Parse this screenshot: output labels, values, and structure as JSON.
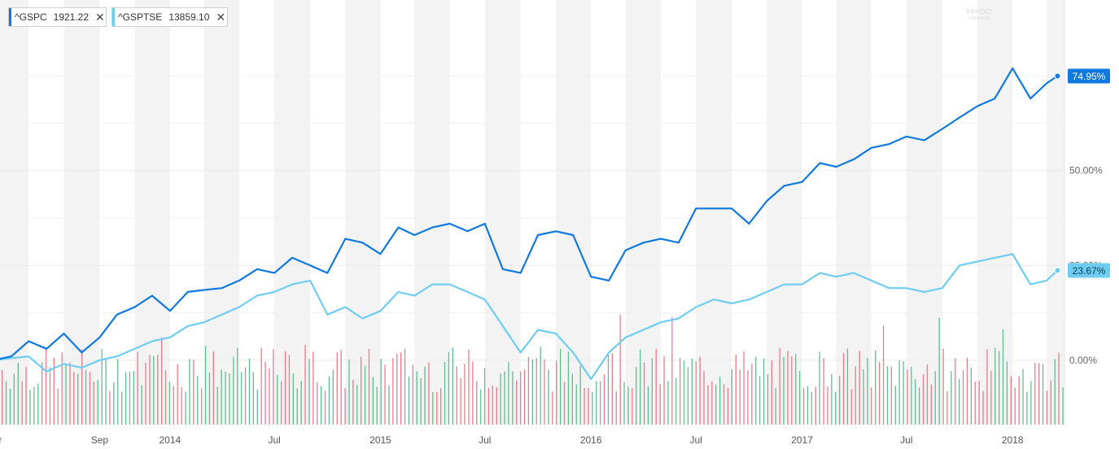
{
  "legend": [
    {
      "symbol": "^GSPC",
      "value": "1921.22",
      "color": "#1079e0",
      "close": "✕"
    },
    {
      "symbol": "^GSPTSE",
      "value": "13859.10",
      "color": "#6fcdf3",
      "close": "✕"
    }
  ],
  "watermark": {
    "brand": "YAHOO!",
    "sub": "FINANCE"
  },
  "chart_data": {
    "type": "line",
    "title": "",
    "xlabel": "",
    "ylabel": "",
    "y_unit": "%",
    "ylim": [
      -17,
      95
    ],
    "x_range": [
      "2013-03-01",
      "2018-04-01"
    ],
    "x_ticks": [
      {
        "date": "2013-03-01",
        "label": "Mar"
      },
      {
        "date": "2013-09-01",
        "label": "Sep"
      },
      {
        "date": "2014-01-01",
        "label": "2014"
      },
      {
        "date": "2014-07-01",
        "label": "Jul"
      },
      {
        "date": "2015-01-01",
        "label": "2015"
      },
      {
        "date": "2015-07-01",
        "label": "Jul"
      },
      {
        "date": "2016-01-01",
        "label": "2016"
      },
      {
        "date": "2016-07-01",
        "label": "Jul"
      },
      {
        "date": "2017-01-01",
        "label": "2017"
      },
      {
        "date": "2017-07-01",
        "label": "Jul"
      },
      {
        "date": "2018-01-01",
        "label": "2018"
      }
    ],
    "y_ticks": [
      {
        "value": 0,
        "label": "0.00%"
      },
      {
        "value": 25,
        "label": "25.00%"
      },
      {
        "value": 50,
        "label": "50.00%"
      }
    ],
    "grid": true,
    "legend_position": "top-left",
    "series": [
      {
        "name": "^GSPC",
        "color": "#1079e0",
        "end_label": "74.95%",
        "end_value": 74.95,
        "points": [
          [
            "2013-03-01",
            0
          ],
          [
            "2013-04-01",
            1
          ],
          [
            "2013-05-01",
            5
          ],
          [
            "2013-06-01",
            3
          ],
          [
            "2013-07-01",
            7
          ],
          [
            "2013-08-01",
            2
          ],
          [
            "2013-09-01",
            6
          ],
          [
            "2013-10-01",
            12
          ],
          [
            "2013-11-01",
            14
          ],
          [
            "2013-12-01",
            17
          ],
          [
            "2014-01-01",
            13
          ],
          [
            "2014-02-01",
            18
          ],
          [
            "2014-03-01",
            18.5
          ],
          [
            "2014-04-01",
            19
          ],
          [
            "2014-05-01",
            21
          ],
          [
            "2014-06-01",
            24
          ],
          [
            "2014-07-01",
            23
          ],
          [
            "2014-08-01",
            27
          ],
          [
            "2014-09-01",
            25
          ],
          [
            "2014-10-01",
            23
          ],
          [
            "2014-11-01",
            32
          ],
          [
            "2014-12-01",
            31
          ],
          [
            "2015-01-01",
            28
          ],
          [
            "2015-02-01",
            35
          ],
          [
            "2015-03-01",
            33
          ],
          [
            "2015-04-01",
            35
          ],
          [
            "2015-05-01",
            36
          ],
          [
            "2015-06-01",
            34
          ],
          [
            "2015-07-01",
            36
          ],
          [
            "2015-08-01",
            24
          ],
          [
            "2015-09-01",
            23
          ],
          [
            "2015-10-01",
            33
          ],
          [
            "2015-11-01",
            34
          ],
          [
            "2015-12-01",
            33
          ],
          [
            "2016-01-01",
            22
          ],
          [
            "2016-02-01",
            21
          ],
          [
            "2016-03-01",
            29
          ],
          [
            "2016-04-01",
            31
          ],
          [
            "2016-05-01",
            32
          ],
          [
            "2016-06-01",
            31
          ],
          [
            "2016-07-01",
            40
          ],
          [
            "2016-08-01",
            40
          ],
          [
            "2016-09-01",
            40
          ],
          [
            "2016-10-01",
            36
          ],
          [
            "2016-11-01",
            42
          ],
          [
            "2016-12-01",
            46
          ],
          [
            "2017-01-01",
            47
          ],
          [
            "2017-02-01",
            52
          ],
          [
            "2017-03-01",
            51
          ],
          [
            "2017-04-01",
            53
          ],
          [
            "2017-05-01",
            56
          ],
          [
            "2017-06-01",
            57
          ],
          [
            "2017-07-01",
            59
          ],
          [
            "2017-08-01",
            58
          ],
          [
            "2017-09-01",
            61
          ],
          [
            "2017-10-01",
            64
          ],
          [
            "2017-11-01",
            67
          ],
          [
            "2017-12-01",
            69
          ],
          [
            "2018-01-01",
            77
          ],
          [
            "2018-02-01",
            69
          ],
          [
            "2018-03-01",
            73
          ],
          [
            "2018-03-20",
            74.95
          ]
        ]
      },
      {
        "name": "^GSPTSE",
        "color": "#6fcdf3",
        "end_label": "23.67%",
        "end_value": 23.67,
        "points": [
          [
            "2013-03-01",
            0
          ],
          [
            "2013-04-01",
            0.5
          ],
          [
            "2013-05-01",
            1
          ],
          [
            "2013-06-01",
            -3
          ],
          [
            "2013-07-01",
            -1
          ],
          [
            "2013-08-01",
            -2
          ],
          [
            "2013-09-01",
            0
          ],
          [
            "2013-10-01",
            1
          ],
          [
            "2013-11-01",
            3
          ],
          [
            "2013-12-01",
            5
          ],
          [
            "2014-01-01",
            6
          ],
          [
            "2014-02-01",
            9
          ],
          [
            "2014-03-01",
            10
          ],
          [
            "2014-04-01",
            12
          ],
          [
            "2014-05-01",
            14
          ],
          [
            "2014-06-01",
            17
          ],
          [
            "2014-07-01",
            18
          ],
          [
            "2014-08-01",
            20
          ],
          [
            "2014-09-01",
            21
          ],
          [
            "2014-10-01",
            12
          ],
          [
            "2014-11-01",
            14
          ],
          [
            "2014-12-01",
            11
          ],
          [
            "2015-01-01",
            13
          ],
          [
            "2015-02-01",
            18
          ],
          [
            "2015-03-01",
            17
          ],
          [
            "2015-04-01",
            20
          ],
          [
            "2015-05-01",
            20
          ],
          [
            "2015-06-01",
            18
          ],
          [
            "2015-07-01",
            16
          ],
          [
            "2015-08-01",
            9
          ],
          [
            "2015-09-01",
            2
          ],
          [
            "2015-10-01",
            8
          ],
          [
            "2015-11-01",
            7
          ],
          [
            "2015-12-01",
            2
          ],
          [
            "2016-01-01",
            -5
          ],
          [
            "2016-02-01",
            2
          ],
          [
            "2016-03-01",
            6
          ],
          [
            "2016-04-01",
            8
          ],
          [
            "2016-05-01",
            10
          ],
          [
            "2016-06-01",
            11
          ],
          [
            "2016-07-01",
            14
          ],
          [
            "2016-08-01",
            16
          ],
          [
            "2016-09-01",
            15
          ],
          [
            "2016-10-01",
            16
          ],
          [
            "2016-11-01",
            18
          ],
          [
            "2016-12-01",
            20
          ],
          [
            "2017-01-01",
            20
          ],
          [
            "2017-02-01",
            23
          ],
          [
            "2017-03-01",
            22
          ],
          [
            "2017-04-01",
            23
          ],
          [
            "2017-05-01",
            21
          ],
          [
            "2017-06-01",
            19
          ],
          [
            "2017-07-01",
            19
          ],
          [
            "2017-08-01",
            18
          ],
          [
            "2017-09-01",
            19
          ],
          [
            "2017-10-01",
            25
          ],
          [
            "2017-11-01",
            26
          ],
          [
            "2017-12-01",
            27
          ],
          [
            "2018-01-01",
            28
          ],
          [
            "2018-02-01",
            20
          ],
          [
            "2018-03-01",
            21
          ],
          [
            "2018-03-20",
            23.67
          ]
        ]
      }
    ]
  }
}
